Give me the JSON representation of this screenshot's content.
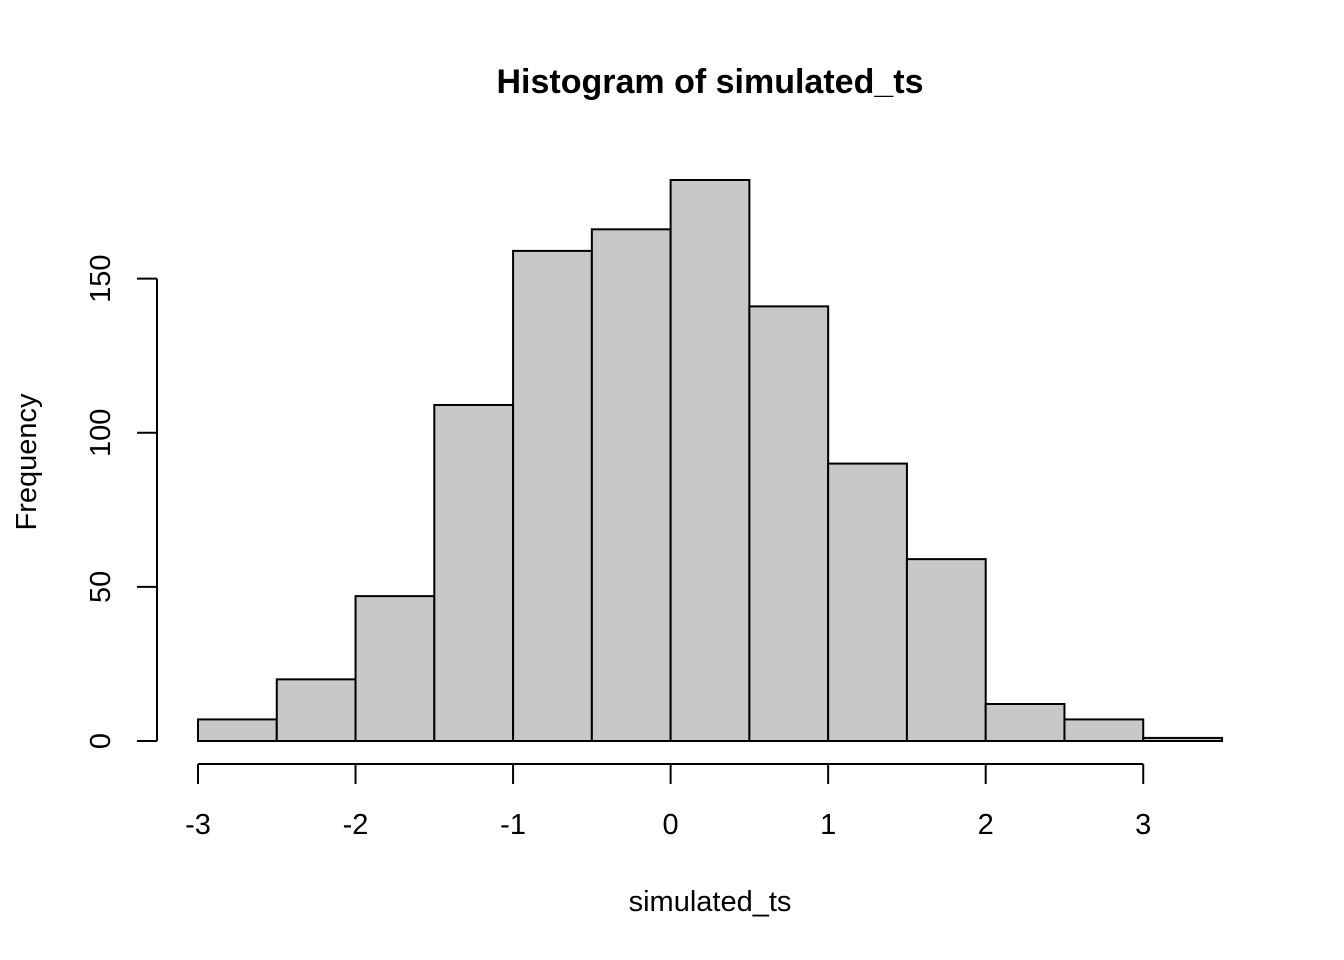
{
  "chart_data": {
    "type": "bar",
    "title": "Histogram of simulated_ts",
    "xlabel": "simulated_ts",
    "ylabel": "Frequency",
    "bin_edges": [
      -3,
      -2.5,
      -2,
      -1.5,
      -1,
      -0.5,
      0,
      0.5,
      1,
      1.5,
      2,
      2.5,
      3,
      3.5
    ],
    "values": [
      7,
      20,
      47,
      109,
      159,
      166,
      182,
      141,
      90,
      59,
      12,
      7,
      1
    ],
    "xlim": [
      -3,
      3.5
    ],
    "ylim": [
      0,
      182
    ],
    "x_ticks": [
      -3,
      -2,
      -1,
      0,
      1,
      2,
      3
    ],
    "x_tick_labels": [
      "-3",
      "-2",
      "-1",
      "0",
      "1",
      "2",
      "3"
    ],
    "y_ticks": [
      0,
      50,
      100,
      150
    ],
    "y_tick_labels": [
      "0",
      "50",
      "100",
      "150"
    ],
    "grid": false,
    "bar_fill": "#c8c8c8",
    "bar_stroke": "#000000"
  }
}
